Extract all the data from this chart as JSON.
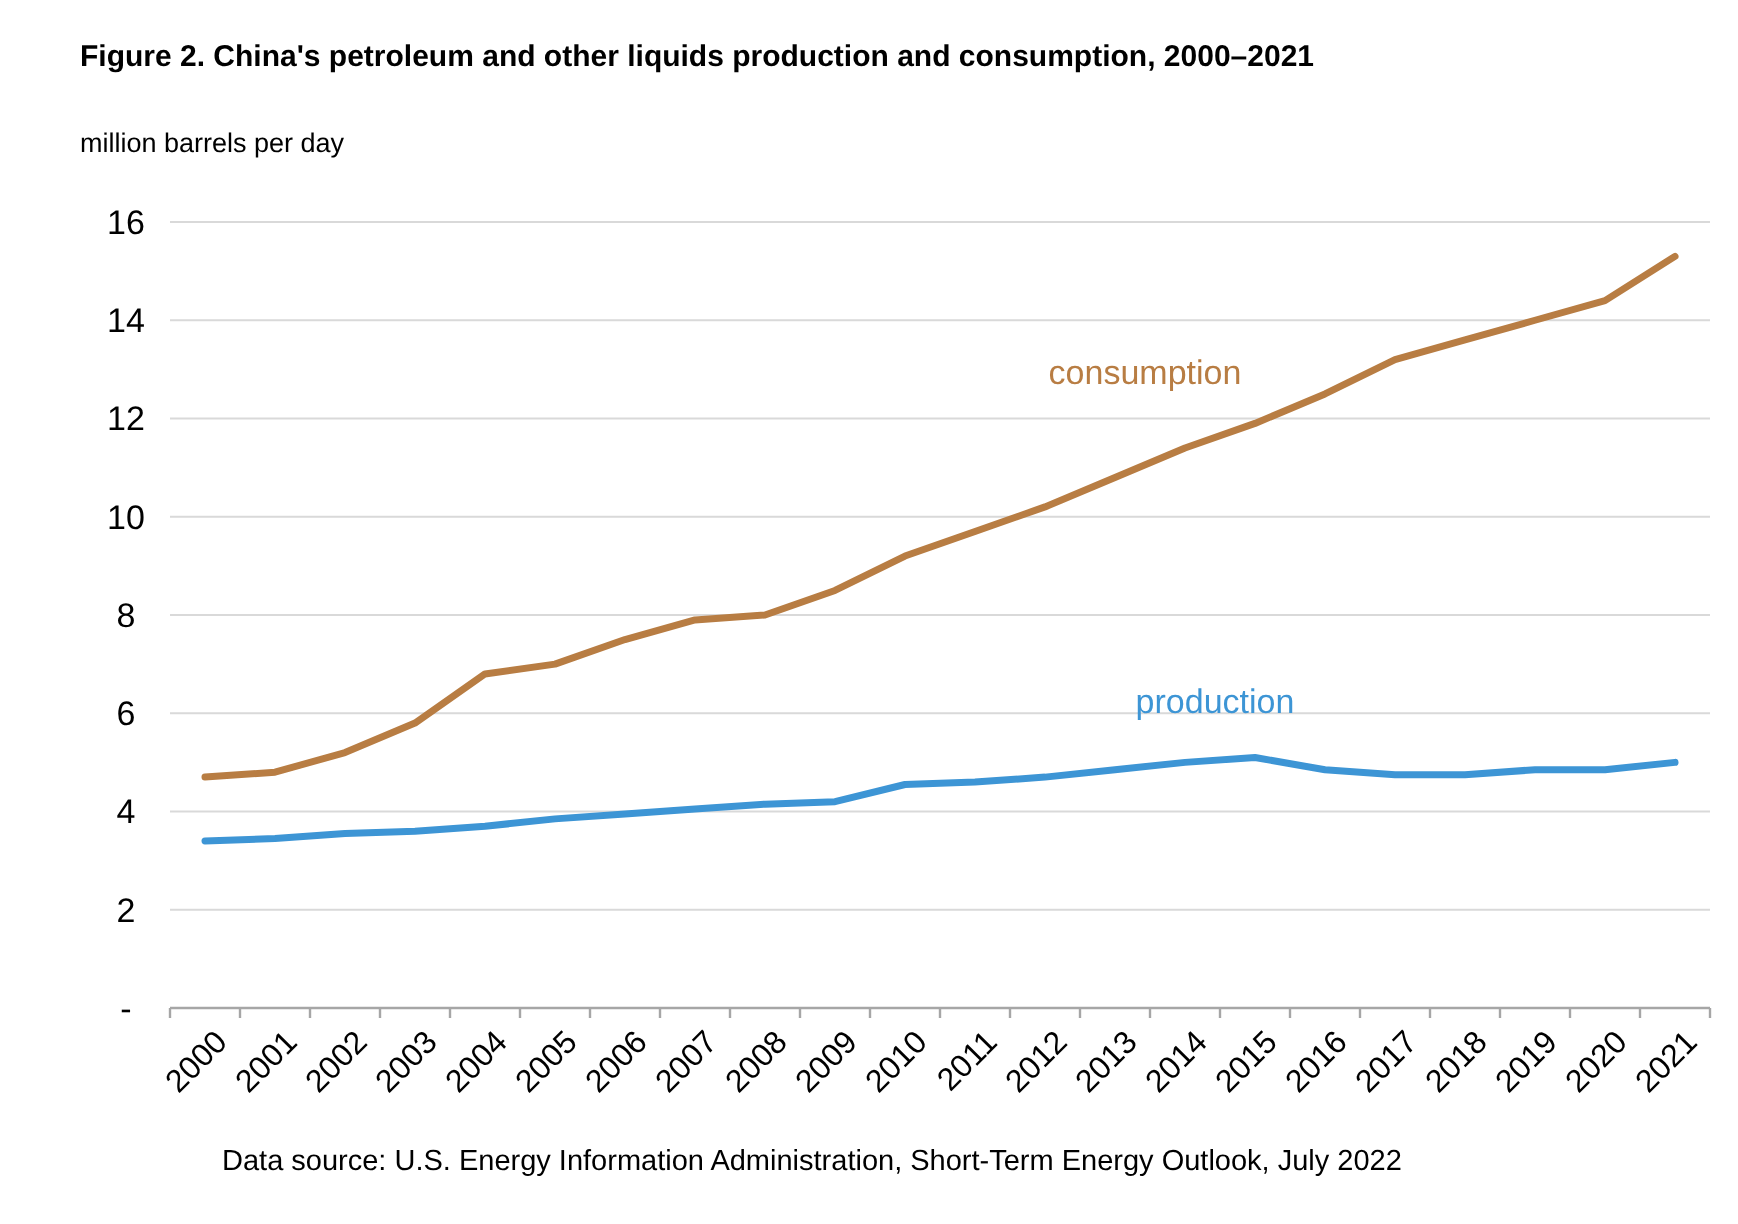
{
  "chart_data": {
    "type": "line",
    "title": "Figure 2. China's petroleum and other liquids production and consumption, 2000–2021",
    "ylabel": "million barrels per day",
    "categories": [
      "2000",
      "2001",
      "2002",
      "2003",
      "2004",
      "2005",
      "2006",
      "2007",
      "2008",
      "2009",
      "2010",
      "2011",
      "2012",
      "2013",
      "2014",
      "2015",
      "2016",
      "2017",
      "2018",
      "2019",
      "2020",
      "2021"
    ],
    "series": [
      {
        "name": "consumption",
        "color": "#b87d43",
        "values": [
          4.7,
          4.8,
          5.2,
          5.8,
          6.8,
          7.0,
          7.5,
          7.9,
          8.0,
          8.5,
          9.2,
          9.7,
          10.2,
          10.8,
          11.4,
          11.9,
          12.5,
          13.2,
          13.6,
          14.0,
          14.4,
          15.3
        ]
      },
      {
        "name": "production",
        "color": "#3d95d5",
        "values": [
          3.4,
          3.45,
          3.55,
          3.6,
          3.7,
          3.85,
          3.95,
          4.05,
          4.15,
          4.2,
          4.55,
          4.6,
          4.7,
          4.85,
          5.0,
          5.1,
          4.85,
          4.75,
          4.75,
          4.85,
          4.85,
          5.0
        ]
      }
    ],
    "ylim": [
      0,
      16
    ],
    "yticks": [
      {
        "value": 0,
        "label": "-"
      },
      2,
      4,
      6,
      8,
      10,
      12,
      14,
      16
    ],
    "grid": "y",
    "marker": "none",
    "line_style": "solid",
    "annotations": [
      "Data source: U.S. Energy Information Administration, Short-Term Energy Outlook, July 2022"
    ]
  }
}
